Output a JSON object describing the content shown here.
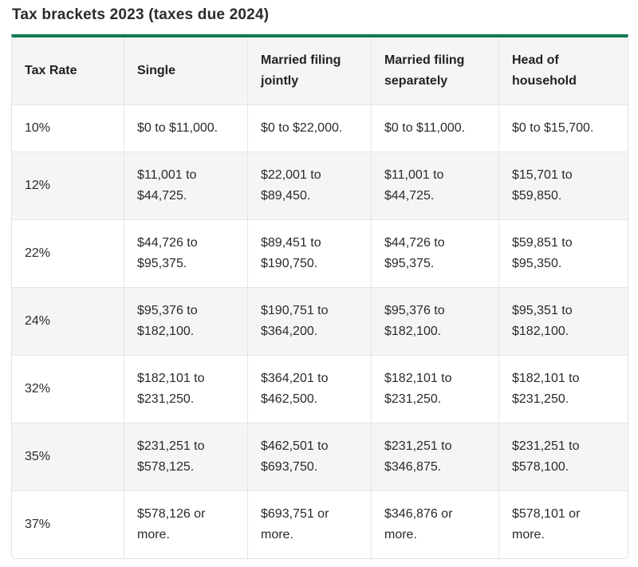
{
  "page": {
    "title": "Tax brackets 2023 (taxes due 2024)"
  },
  "table": {
    "columns": [
      "Tax Rate",
      "Single",
      "Married filing jointly",
      "Married filing separately",
      "Head of household"
    ],
    "rows": [
      [
        "10%",
        "$0 to $11,000.",
        "$0 to $22,000.",
        "$0 to $11,000.",
        "$0 to $15,700."
      ],
      [
        "12%",
        "$11,001 to $44,725.",
        "$22,001 to $89,450.",
        "$11,001 to $44,725.",
        "$15,701 to $59,850."
      ],
      [
        "22%",
        "$44,726 to $95,375.",
        "$89,451 to $190,750.",
        "$44,726 to $95,375.",
        "$59,851 to $95,350."
      ],
      [
        "24%",
        "$95,376 to $182,100.",
        "$190,751 to $364,200.",
        "$95,376 to $182,100.",
        "$95,351 to $182,100."
      ],
      [
        "32%",
        "$182,101 to $231,250.",
        "$364,201 to $462,500.",
        "$182,101 to $231,250.",
        "$182,101 to $231,250."
      ],
      [
        "35%",
        "$231,251 to $578,125.",
        "$462,501 to $693,750.",
        "$231,251 to $346,875.",
        "$231,251 to $578,100."
      ],
      [
        "37%",
        "$578,126 or more.",
        "$693,751 or more.",
        "$346,876 or more.",
        "$578,101 or more."
      ]
    ]
  },
  "colors": {
    "accent_green": "#0f7b4f",
    "header_bg": "#f5f5f4",
    "stripe_bg": "#f5f5f4",
    "row_bg": "#ffffff",
    "border": "#e6e6e6",
    "text": "#2a2a2a"
  }
}
